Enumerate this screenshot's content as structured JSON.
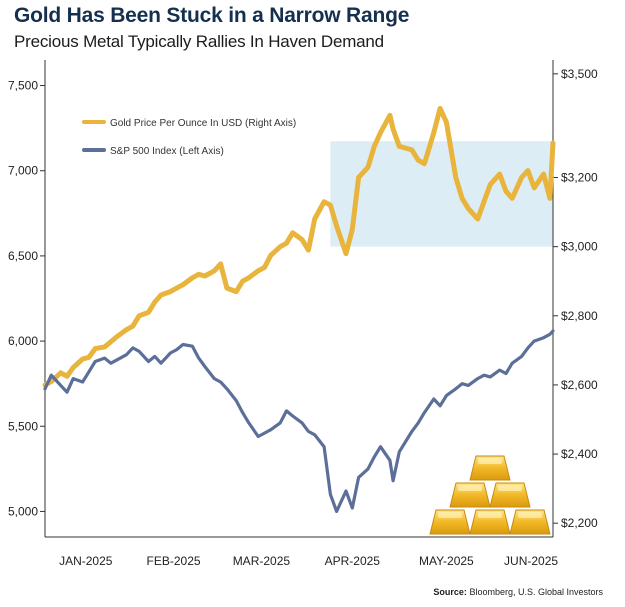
{
  "title": "Gold Has Been Stuck in a Narrow Range",
  "subtitle": "Precious Metal Typically Rallies In Haven Demand",
  "source_label": "Source:",
  "source_text": "Bloomberg, U.S. Global Investors",
  "colors": {
    "gold": "#e8b43c",
    "sp500": "#5b6f98",
    "range_box": "#dcedf5",
    "bars": "#f2b826"
  },
  "icon": "gold-bars-icon",
  "chart_data": {
    "type": "line",
    "title": "Gold Has Been Stuck in a Narrow Range",
    "subtitle": "Precious Metal Typically Rallies In Haven Demand",
    "xlabel": "",
    "ylabel": "",
    "y2label": "",
    "x_ticks": [
      "JAN-2025",
      "FEB-2025",
      "MAR-2025",
      "APR-2025",
      "MAY-2025",
      "JUN-2025"
    ],
    "x_range": [
      "2025-01-01",
      "2025-06-12"
    ],
    "y_left": {
      "range": [
        4850,
        7650
      ],
      "ticks": [
        5000,
        5500,
        6000,
        6500,
        7000,
        7500
      ],
      "tick_labels": [
        "5,000",
        "5,500",
        "6,000",
        "6,500",
        "7,000",
        "7,500"
      ]
    },
    "y_right": {
      "range": [
        2160,
        3540
      ],
      "ticks": [
        2200,
        2400,
        2600,
        2800,
        3000,
        3200,
        3500
      ],
      "tick_labels": [
        "$2,200",
        "$2,400",
        "$2,600",
        "$2,800",
        "$3,000",
        "$3,200",
        "$3,500"
      ]
    },
    "legend_position": "top-left",
    "highlight_range": {
      "x": [
        "2025-04-02",
        "2025-06-12"
      ],
      "y_right": [
        3000,
        3305
      ]
    },
    "series": [
      {
        "name": "Gold Price Per Ounce In USD (Right Axis)",
        "axis": "right",
        "x": [
          "2025-01-01",
          "2025-01-03",
          "2025-01-06",
          "2025-01-08",
          "2025-01-10",
          "2025-01-13",
          "2025-01-15",
          "2025-01-17",
          "2025-01-20",
          "2025-01-22",
          "2025-01-24",
          "2025-01-27",
          "2025-01-29",
          "2025-01-31",
          "2025-02-03",
          "2025-02-05",
          "2025-02-07",
          "2025-02-10",
          "2025-02-12",
          "2025-02-14",
          "2025-02-17",
          "2025-02-19",
          "2025-02-21",
          "2025-02-24",
          "2025-02-26",
          "2025-02-28",
          "2025-03-03",
          "2025-03-05",
          "2025-03-07",
          "2025-03-10",
          "2025-03-12",
          "2025-03-14",
          "2025-03-17",
          "2025-03-19",
          "2025-03-21",
          "2025-03-24",
          "2025-03-26",
          "2025-03-28",
          "2025-03-31",
          "2025-04-02",
          "2025-04-04",
          "2025-04-07",
          "2025-04-09",
          "2025-04-11",
          "2025-04-14",
          "2025-04-16",
          "2025-04-18",
          "2025-04-21",
          "2025-04-22",
          "2025-04-24",
          "2025-04-28",
          "2025-04-30",
          "2025-05-02",
          "2025-05-05",
          "2025-05-07",
          "2025-05-09",
          "2025-05-12",
          "2025-05-14",
          "2025-05-16",
          "2025-05-19",
          "2025-05-21",
          "2025-05-23",
          "2025-05-26",
          "2025-05-28",
          "2025-05-30",
          "2025-06-02",
          "2025-06-04",
          "2025-06-06",
          "2025-06-09",
          "2025-06-11",
          "2025-06-12"
        ],
        "values": [
          2600,
          2610,
          2635,
          2625,
          2650,
          2675,
          2680,
          2705,
          2710,
          2725,
          2740,
          2760,
          2770,
          2800,
          2810,
          2840,
          2860,
          2870,
          2880,
          2890,
          2910,
          2920,
          2915,
          2930,
          2950,
          2880,
          2870,
          2900,
          2910,
          2930,
          2940,
          2975,
          3000,
          3010,
          3040,
          3020,
          2990,
          3080,
          3130,
          3120,
          3060,
          2980,
          3050,
          3200,
          3230,
          3290,
          3330,
          3380,
          3340,
          3290,
          3280,
          3250,
          3240,
          3330,
          3400,
          3360,
          3200,
          3140,
          3110,
          3080,
          3130,
          3180,
          3210,
          3160,
          3140,
          3200,
          3220,
          3170,
          3210,
          3140,
          3300
        ]
      },
      {
        "name": "S&P 500 Index (Left Axis)",
        "axis": "left",
        "x": [
          "2025-01-01",
          "2025-01-03",
          "2025-01-06",
          "2025-01-08",
          "2025-01-10",
          "2025-01-13",
          "2025-01-15",
          "2025-01-17",
          "2025-01-20",
          "2025-01-22",
          "2025-01-24",
          "2025-01-27",
          "2025-01-29",
          "2025-01-31",
          "2025-02-03",
          "2025-02-05",
          "2025-02-07",
          "2025-02-10",
          "2025-02-12",
          "2025-02-14",
          "2025-02-17",
          "2025-02-19",
          "2025-02-21",
          "2025-02-24",
          "2025-02-26",
          "2025-02-28",
          "2025-03-03",
          "2025-03-05",
          "2025-03-07",
          "2025-03-10",
          "2025-03-12",
          "2025-03-14",
          "2025-03-17",
          "2025-03-19",
          "2025-03-21",
          "2025-03-24",
          "2025-03-26",
          "2025-03-28",
          "2025-03-31",
          "2025-04-02",
          "2025-04-04",
          "2025-04-07",
          "2025-04-09",
          "2025-04-11",
          "2025-04-14",
          "2025-04-16",
          "2025-04-18",
          "2025-04-21",
          "2025-04-22",
          "2025-04-24",
          "2025-04-28",
          "2025-04-30",
          "2025-05-02",
          "2025-05-05",
          "2025-05-07",
          "2025-05-09",
          "2025-05-12",
          "2025-05-14",
          "2025-05-16",
          "2025-05-19",
          "2025-05-21",
          "2025-05-23",
          "2025-05-26",
          "2025-05-28",
          "2025-05-30",
          "2025-06-02",
          "2025-06-04",
          "2025-06-06",
          "2025-06-09",
          "2025-06-11",
          "2025-06-12"
        ],
        "values": [
          5720,
          5800,
          5740,
          5700,
          5780,
          5760,
          5820,
          5880,
          5900,
          5870,
          5890,
          5920,
          5960,
          5940,
          5880,
          5910,
          5870,
          5930,
          5950,
          5980,
          5970,
          5900,
          5850,
          5780,
          5760,
          5720,
          5650,
          5580,
          5520,
          5440,
          5460,
          5480,
          5520,
          5590,
          5560,
          5520,
          5470,
          5450,
          5380,
          5100,
          5000,
          5120,
          5020,
          5200,
          5250,
          5320,
          5380,
          5300,
          5180,
          5350,
          5470,
          5520,
          5580,
          5660,
          5620,
          5680,
          5720,
          5750,
          5740,
          5780,
          5800,
          5790,
          5830,
          5810,
          5870,
          5910,
          5960,
          6000,
          6020,
          6040,
          6060
        ]
      }
    ]
  }
}
